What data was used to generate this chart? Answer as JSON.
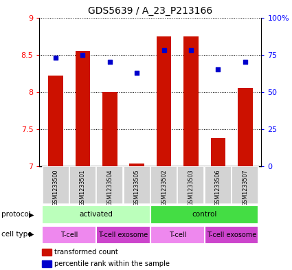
{
  "title": "GDS5639 / A_23_P213166",
  "samples": [
    "GSM1233500",
    "GSM1233501",
    "GSM1233504",
    "GSM1233505",
    "GSM1233502",
    "GSM1233503",
    "GSM1233506",
    "GSM1233507"
  ],
  "transformed_count": [
    8.22,
    8.55,
    8.0,
    7.03,
    8.75,
    8.75,
    7.38,
    8.05
  ],
  "percentile_rank": [
    73,
    75,
    70,
    63,
    78,
    78,
    65,
    70
  ],
  "ylim_left": [
    7.0,
    9.0
  ],
  "ylim_right": [
    0,
    100
  ],
  "yticks_left": [
    7.0,
    7.5,
    8.0,
    8.5,
    9.0
  ],
  "ytick_labels_left": [
    "7",
    "7.5",
    "8",
    "8.5",
    "9"
  ],
  "yticks_right": [
    0,
    25,
    50,
    75,
    100
  ],
  "ytick_labels_right": [
    "0",
    "25",
    "50",
    "75",
    "100%"
  ],
  "bar_color": "#cc1100",
  "dot_color": "#0000cc",
  "bar_bottom": 7.0,
  "protocol_groups": [
    {
      "label": "activated",
      "start": 0,
      "end": 3,
      "color": "#bbffbb"
    },
    {
      "label": "control",
      "start": 4,
      "end": 7,
      "color": "#44dd44"
    }
  ],
  "cell_type_groups": [
    {
      "label": "T-cell",
      "start": 0,
      "end": 1,
      "color": "#ee88ee"
    },
    {
      "label": "T-cell exosome",
      "start": 2,
      "end": 3,
      "color": "#cc44cc"
    },
    {
      "label": "T-cell",
      "start": 4,
      "end": 5,
      "color": "#ee88ee"
    },
    {
      "label": "T-cell exosome",
      "start": 6,
      "end": 7,
      "color": "#cc44cc"
    }
  ],
  "legend_bar_label": "transformed count",
  "legend_dot_label": "percentile rank within the sample",
  "title_fontsize": 10,
  "tick_fontsize": 8,
  "sample_fontsize": 5.8,
  "label_fontsize": 7.5,
  "group_fontsize": 7.5
}
